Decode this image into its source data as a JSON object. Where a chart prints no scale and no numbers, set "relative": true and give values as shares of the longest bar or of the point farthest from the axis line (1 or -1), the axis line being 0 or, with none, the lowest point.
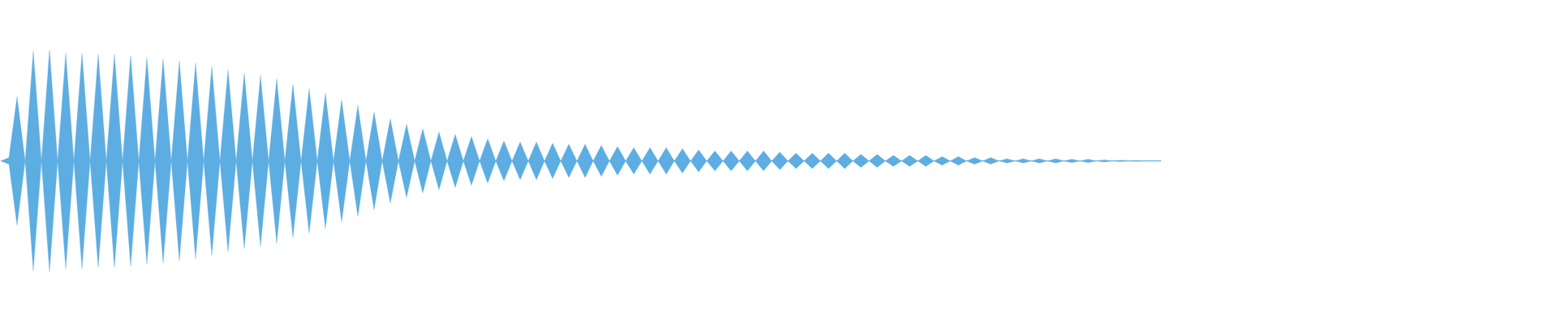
{
  "chart_data": {
    "type": "area",
    "relative": true,
    "categories": [
      null,
      null,
      null,
      null,
      null,
      null,
      null,
      null,
      null,
      null,
      null,
      null,
      null,
      null,
      null,
      null,
      null,
      null,
      null,
      null,
      null,
      null,
      null,
      null,
      null,
      null,
      null,
      null,
      null,
      null,
      null,
      null,
      null,
      null,
      null,
      null,
      null,
      null,
      null,
      null,
      null,
      null,
      null,
      null,
      null,
      null,
      null,
      null,
      null,
      null,
      null,
      null,
      null,
      null,
      null,
      null,
      null,
      null,
      null,
      null,
      null,
      null,
      null,
      null,
      null,
      null,
      null,
      null,
      null,
      null,
      null,
      null,
      null,
      null,
      null,
      null,
      null,
      null,
      null,
      null,
      null,
      null,
      null,
      null,
      null,
      null,
      null,
      null,
      null,
      null,
      null,
      null,
      null,
      null,
      null,
      null,
      null,
      null,
      null,
      null,
      null,
      null,
      null,
      null,
      null,
      null,
      null,
      null,
      null,
      null,
      null,
      null,
      null,
      null,
      null,
      null,
      null,
      null,
      null,
      null,
      null,
      null,
      null,
      null,
      null,
      null,
      null,
      null,
      null,
      null,
      null,
      null,
      null,
      null,
      null,
      null,
      null,
      null,
      null,
      null,
      null,
      null,
      null,
      null
    ],
    "series": [
      {
        "color": "#5dade2",
        "values": [
          0,
          0.03,
          0.58,
          0,
          0.99,
          0,
          1,
          0,
          0.97,
          0,
          0.97,
          0,
          0.96,
          0,
          0.96,
          0,
          0.95,
          0,
          0.93,
          0,
          0.92,
          0,
          0.9,
          0,
          0.88,
          0,
          0.85,
          0,
          0.82,
          0,
          0.79,
          0,
          0.77,
          0,
          0.74,
          0,
          0.69,
          0,
          0.65,
          0,
          0.61,
          0,
          0.55,
          0,
          0.5,
          0,
          0.44,
          0,
          0.38,
          0,
          0.33,
          0,
          0.29,
          0,
          0.26,
          0,
          0.24,
          0,
          0.22,
          0,
          0.2,
          0,
          0.18,
          0,
          0.17,
          0,
          0.17,
          0,
          0.16,
          0,
          0.15,
          0,
          0.15,
          0,
          0.14,
          0,
          0.13,
          0,
          0.12,
          0,
          0.12,
          0,
          0.12,
          0,
          0.11,
          0,
          0.1,
          0,
          0.09,
          0,
          0.09,
          0,
          0.09,
          0,
          0.09,
          0,
          0.08,
          0,
          0.07,
          0,
          0.07,
          0,
          0.07,
          0,
          0.07,
          0,
          0.06,
          0,
          0.06,
          0,
          0.05,
          0,
          0.05,
          0,
          0.05,
          0,
          0.04,
          0,
          0.04,
          0,
          0.03,
          0,
          0.03,
          0,
          0.02,
          0,
          0.02,
          0,
          0.02,
          0,
          0.02,
          0,
          0.015,
          0,
          0.015,
          0,
          0.01,
          0,
          0.007,
          0,
          0.005,
          0,
          0.002,
          0
        ]
      },
      {
        "color": "#5caee2",
        "values": [
          0,
          -0.03,
          -0.58,
          0,
          -0.99,
          0,
          -1,
          0,
          -0.97,
          0,
          -0.97,
          0,
          -0.96,
          0,
          -0.96,
          0,
          -0.95,
          0,
          -0.93,
          0,
          -0.92,
          0,
          -0.9,
          0,
          -0.88,
          0,
          -0.85,
          0,
          -0.82,
          0,
          -0.79,
          0,
          -0.77,
          0,
          -0.74,
          0,
          -0.69,
          0,
          -0.65,
          0,
          -0.61,
          0,
          -0.55,
          0,
          -0.5,
          0,
          -0.44,
          0,
          -0.38,
          0,
          -0.33,
          0,
          -0.29,
          0,
          -0.26,
          0,
          -0.24,
          0,
          -0.22,
          0,
          -0.2,
          0,
          -0.18,
          0,
          -0.17,
          0,
          -0.17,
          0,
          -0.16,
          0,
          -0.15,
          0,
          -0.15,
          0,
          -0.14,
          0,
          -0.13,
          0,
          -0.12,
          0,
          -0.12,
          0,
          -0.12,
          0,
          -0.11,
          0,
          -0.1,
          0,
          -0.09,
          0,
          -0.09,
          0,
          -0.09,
          0,
          -0.09,
          0,
          -0.08,
          0,
          -0.07,
          0,
          -0.07,
          0,
          -0.07,
          0,
          -0.07,
          0,
          -0.06,
          0,
          -0.06,
          0,
          -0.05,
          0,
          -0.05,
          0,
          -0.05,
          0,
          -0.04,
          0,
          -0.04,
          0,
          -0.03,
          0,
          -0.03,
          0,
          -0.02,
          0,
          -0.02,
          0,
          -0.02,
          0,
          -0.02,
          0,
          -0.015,
          0,
          -0.015,
          0,
          -0.01,
          0,
          -0.007,
          0,
          -0.005,
          0,
          -0.002,
          0
        ]
      }
    ]
  }
}
